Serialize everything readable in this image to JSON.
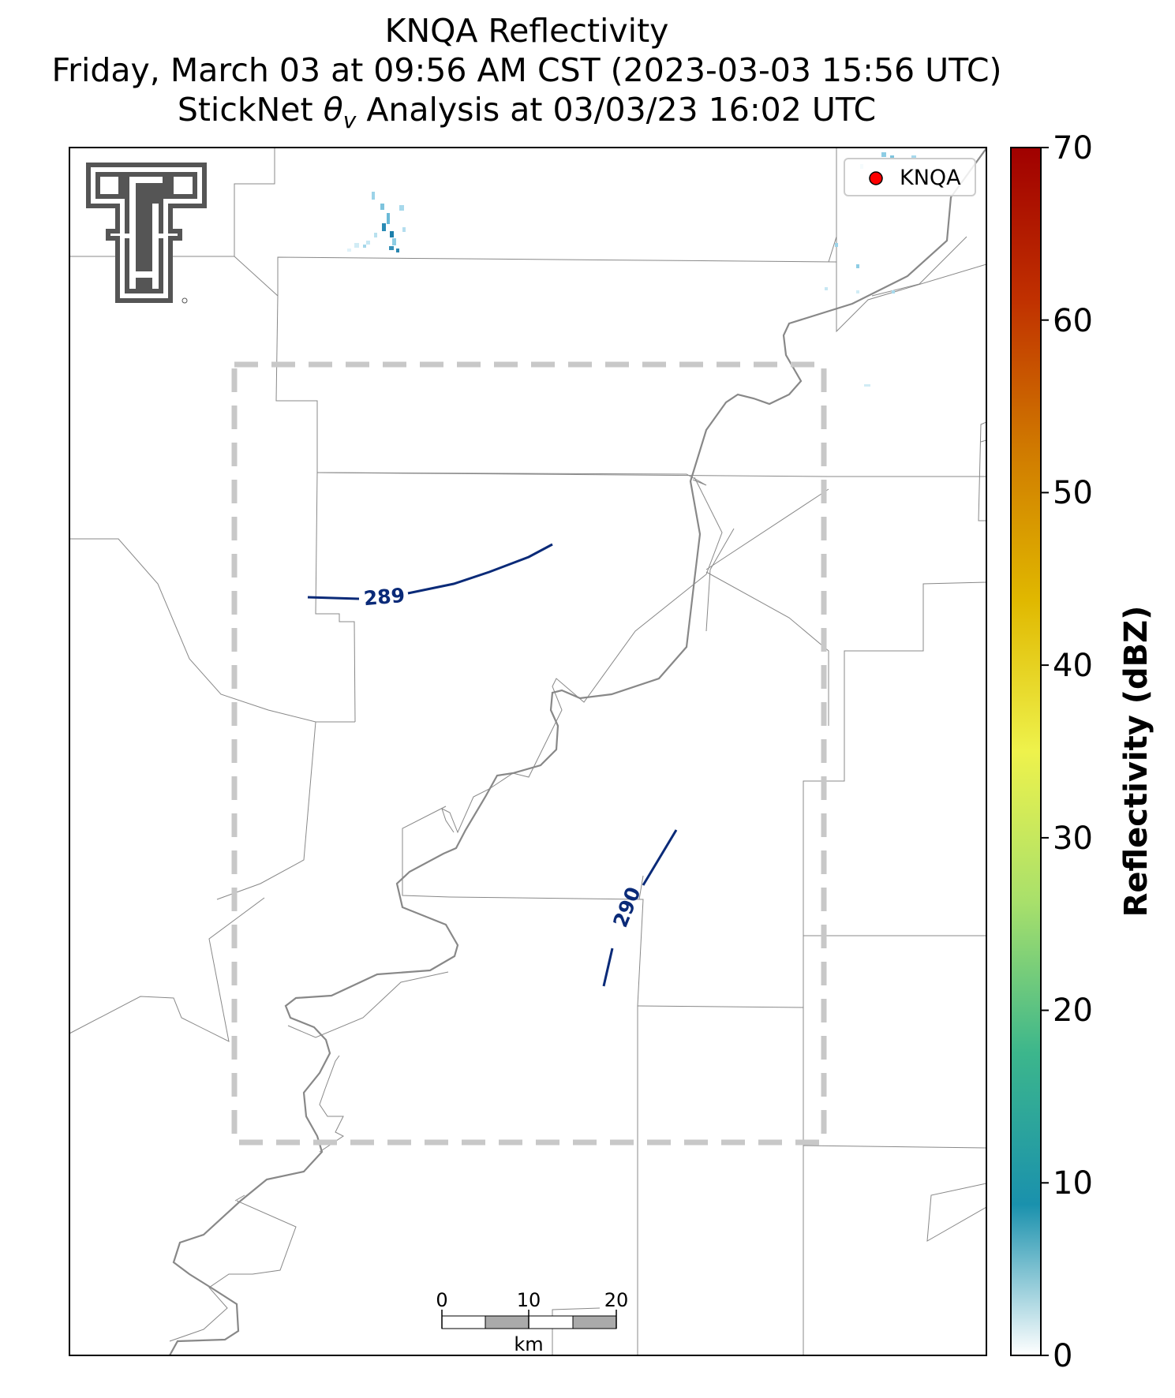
{
  "title": {
    "line1": "KNQA Reflectivity",
    "line2": "Friday, March 03 at 09:56 AM CST (2023-03-03 15:56 UTC)",
    "line3_prefix": "StickNet ",
    "line3_theta": "θ",
    "line3_sub": "v",
    "line3_suffix": " Analysis at 03/03/23 16:02 UTC"
  },
  "legend": {
    "marker_color": "#ff0000",
    "label": "KNQA"
  },
  "contours": [
    {
      "label": "289",
      "color": "#0a2a78"
    },
    {
      "label": "290",
      "color": "#0a2a78"
    }
  ],
  "scale_bar": {
    "ticks": [
      "0",
      "10",
      "20"
    ],
    "unit": "km"
  },
  "colorbar": {
    "label": "Reflectivity (dBZ)",
    "ticks": [
      "0",
      "10",
      "20",
      "30",
      "40",
      "50",
      "60",
      "70"
    ],
    "stops": [
      "#ffffff",
      "#1a91ad",
      "#3cb68c",
      "#a8e06b",
      "#eef24c",
      "#e0b800",
      "#d07a00",
      "#c03000",
      "#a00000"
    ]
  },
  "logo": {
    "name": "Texas Tech double-T logo",
    "color": "#555555"
  }
}
